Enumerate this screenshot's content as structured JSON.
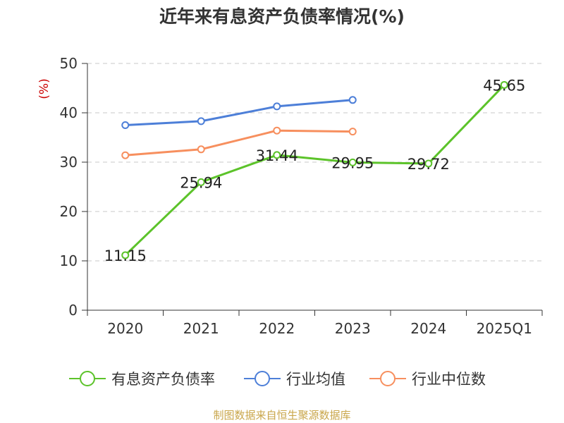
{
  "chart_data": {
    "type": "line",
    "title": "近年来有息资产负债率情况(%)",
    "ylabel": "(%)",
    "xlabel": "",
    "categories": [
      "2020",
      "2021",
      "2022",
      "2023",
      "2024",
      "2025Q1"
    ],
    "ylim": [
      0,
      50
    ],
    "yticks": [
      0,
      10,
      20,
      30,
      40,
      50
    ],
    "grid": true,
    "legend_position": "bottom",
    "series": [
      {
        "name": "有息资产负债率",
        "values": [
          11.15,
          25.94,
          31.44,
          29.95,
          29.72,
          45.65
        ],
        "labels": [
          "11.15",
          "25.94",
          "31.44",
          "29.95",
          "29.72",
          "45.65"
        ],
        "color": "#5cc32a"
      },
      {
        "name": "行业均值",
        "values": [
          37.5,
          38.3,
          41.3,
          42.6,
          null,
          null
        ],
        "color": "#4d7fd8"
      },
      {
        "name": "行业中位数",
        "values": [
          31.4,
          32.6,
          36.4,
          36.2,
          null,
          null
        ],
        "color": "#f78f5e"
      }
    ]
  },
  "source_note": "制图数据来自恒生聚源数据库"
}
